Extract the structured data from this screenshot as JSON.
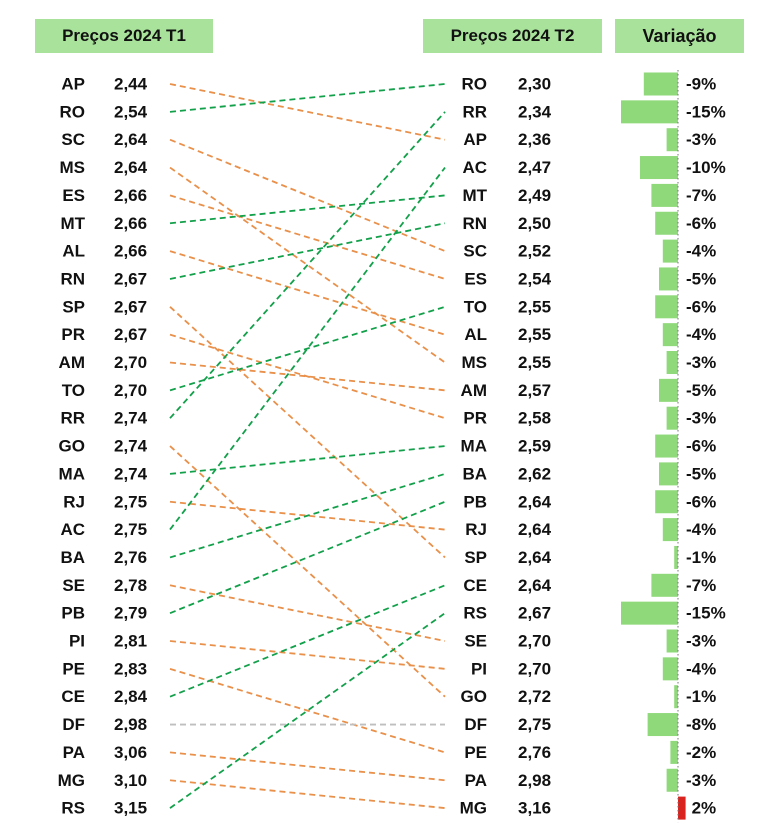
{
  "headers": {
    "t1": "Preços 2024 T1",
    "t2": "Preços 2024 T2",
    "variation": "Variação"
  },
  "colors": {
    "header_bg": "#a9e39b",
    "decrease_line": "#e9904a",
    "increase_line": "#12a04a",
    "unchanged_line": "#bfbfbf",
    "bar_negative": "#8fd97a",
    "bar_positive": "#d9231f",
    "text": "#111111"
  },
  "chart_data": {
    "type": "slope",
    "title": "",
    "left": {
      "header": "Preços 2024 T1",
      "rows": [
        {
          "state": "AP",
          "value": "2,44"
        },
        {
          "state": "RO",
          "value": "2,54"
        },
        {
          "state": "SC",
          "value": "2,64"
        },
        {
          "state": "MS",
          "value": "2,64"
        },
        {
          "state": "ES",
          "value": "2,66"
        },
        {
          "state": "MT",
          "value": "2,66"
        },
        {
          "state": "AL",
          "value": "2,66"
        },
        {
          "state": "RN",
          "value": "2,67"
        },
        {
          "state": "SP",
          "value": "2,67"
        },
        {
          "state": "PR",
          "value": "2,67"
        },
        {
          "state": "AM",
          "value": "2,70"
        },
        {
          "state": "TO",
          "value": "2,70"
        },
        {
          "state": "RR",
          "value": "2,74"
        },
        {
          "state": "GO",
          "value": "2,74"
        },
        {
          "state": "MA",
          "value": "2,74"
        },
        {
          "state": "RJ",
          "value": "2,75"
        },
        {
          "state": "AC",
          "value": "2,75"
        },
        {
          "state": "BA",
          "value": "2,76"
        },
        {
          "state": "SE",
          "value": "2,78"
        },
        {
          "state": "PB",
          "value": "2,79"
        },
        {
          "state": "PI",
          "value": "2,81"
        },
        {
          "state": "PE",
          "value": "2,83"
        },
        {
          "state": "CE",
          "value": "2,84"
        },
        {
          "state": "DF",
          "value": "2,98"
        },
        {
          "state": "PA",
          "value": "3,06"
        },
        {
          "state": "MG",
          "value": "3,10"
        },
        {
          "state": "RS",
          "value": "3,15"
        }
      ]
    },
    "right": {
      "header": "Preços 2024 T2",
      "rows": [
        {
          "state": "RO",
          "value": "2,30",
          "variation": -9,
          "variation_label": "-9%"
        },
        {
          "state": "RR",
          "value": "2,34",
          "variation": -15,
          "variation_label": "-15%"
        },
        {
          "state": "AP",
          "value": "2,36",
          "variation": -3,
          "variation_label": "-3%"
        },
        {
          "state": "AC",
          "value": "2,47",
          "variation": -10,
          "variation_label": "-10%"
        },
        {
          "state": "MT",
          "value": "2,49",
          "variation": -7,
          "variation_label": "-7%"
        },
        {
          "state": "RN",
          "value": "2,50",
          "variation": -6,
          "variation_label": "-6%"
        },
        {
          "state": "SC",
          "value": "2,52",
          "variation": -4,
          "variation_label": "-4%"
        },
        {
          "state": "ES",
          "value": "2,54",
          "variation": -5,
          "variation_label": "-5%"
        },
        {
          "state": "TO",
          "value": "2,55",
          "variation": -6,
          "variation_label": "-6%"
        },
        {
          "state": "AL",
          "value": "2,55",
          "variation": -4,
          "variation_label": "-4%"
        },
        {
          "state": "MS",
          "value": "2,55",
          "variation": -3,
          "variation_label": "-3%"
        },
        {
          "state": "AM",
          "value": "2,57",
          "variation": -5,
          "variation_label": "-5%"
        },
        {
          "state": "PR",
          "value": "2,58",
          "variation": -3,
          "variation_label": "-3%"
        },
        {
          "state": "MA",
          "value": "2,59",
          "variation": -6,
          "variation_label": "-6%"
        },
        {
          "state": "BA",
          "value": "2,62",
          "variation": -5,
          "variation_label": "-5%"
        },
        {
          "state": "PB",
          "value": "2,64",
          "variation": -6,
          "variation_label": "-6%"
        },
        {
          "state": "RJ",
          "value": "2,64",
          "variation": -4,
          "variation_label": "-4%"
        },
        {
          "state": "SP",
          "value": "2,64",
          "variation": -1,
          "variation_label": "-1%"
        },
        {
          "state": "CE",
          "value": "2,64",
          "variation": -7,
          "variation_label": "-7%"
        },
        {
          "state": "RS",
          "value": "2,67",
          "variation": -15,
          "variation_label": "-15%"
        },
        {
          "state": "SE",
          "value": "2,70",
          "variation": -3,
          "variation_label": "-3%"
        },
        {
          "state": "PI",
          "value": "2,70",
          "variation": -4,
          "variation_label": "-4%"
        },
        {
          "state": "GO",
          "value": "2,72",
          "variation": -1,
          "variation_label": "-1%"
        },
        {
          "state": "DF",
          "value": "2,75",
          "variation": -8,
          "variation_label": "-8%"
        },
        {
          "state": "PE",
          "value": "2,76",
          "variation": -2,
          "variation_label": "-2%"
        },
        {
          "state": "PA",
          "value": "2,98",
          "variation": -3,
          "variation_label": "-3%"
        },
        {
          "state": "MG",
          "value": "3,16",
          "variation": 2,
          "variation_label": "2%"
        }
      ]
    },
    "variation_header": "Variação",
    "variation_unit": "%"
  }
}
